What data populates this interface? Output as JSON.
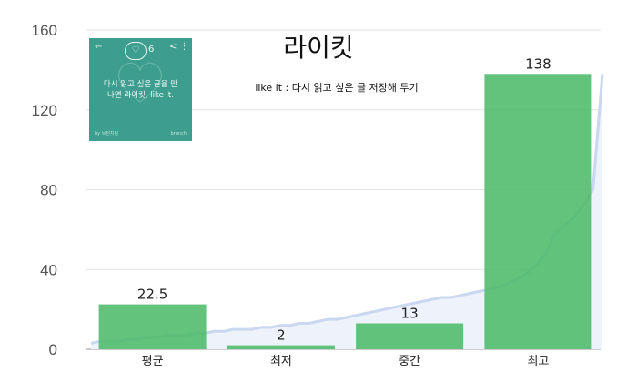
{
  "chart_data": {
    "type": "bar",
    "title": "라이킷",
    "subtitle": "like it : 다시 읽고 싶은 글 저장해 두기",
    "categories": [
      "평균",
      "최저",
      "중간",
      "최고"
    ],
    "values": [
      22.5,
      2,
      13,
      138
    ],
    "value_labels": [
      "22.5",
      "2",
      "13",
      "138"
    ],
    "ylim": [
      0,
      160
    ],
    "yticks": [
      0,
      40,
      80,
      120,
      160
    ],
    "grid": true,
    "legend": "none",
    "bar_color": "#4dbb6a",
    "background_line": {
      "type": "area",
      "color": "#c9d7f0",
      "values": [
        3,
        4,
        4,
        4,
        5,
        5,
        6,
        6,
        7,
        7,
        7,
        8,
        8,
        9,
        9,
        10,
        10,
        10,
        11,
        11,
        12,
        12,
        13,
        13,
        14,
        15,
        15,
        16,
        17,
        18,
        19,
        20,
        21,
        22,
        23,
        24,
        25,
        26,
        26,
        27,
        28,
        29,
        30,
        31,
        33,
        35,
        38,
        42,
        48,
        58,
        62,
        66,
        72,
        80,
        138
      ]
    }
  },
  "thumbnail": {
    "badge_count": "6",
    "text_line1": "다시 읽고 싶은 글을 만",
    "text_line2": "나면 라이킷, like it.",
    "footer_left": "by 브런치팀",
    "footer_right": "brunch",
    "back_glyph": "←",
    "share_glyph": "< ⋮",
    "bg_color": "#3d9d8e"
  }
}
